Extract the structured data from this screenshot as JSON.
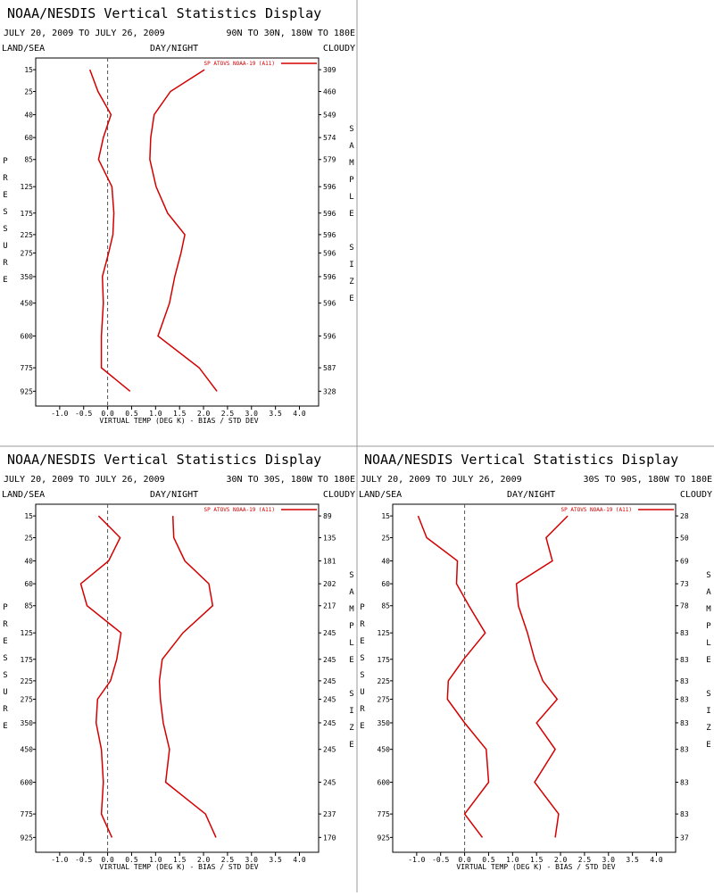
{
  "chart_data": [
    {
      "type": "line",
      "title": "NOAA/NESDIS Vertical Statistics Display",
      "date_range": "JULY 20, 2009 TO JULY 26, 2009",
      "region": "90N TO 30N, 180W TO 180E",
      "land_sea": "LAND/SEA",
      "day_night": "DAY/NIGHT",
      "cloudy": "CLOUDY",
      "ylabel": "PRESSURE",
      "y2label": "SAMPLE SIZE",
      "xlabel": "VIRTUAL TEMP (DEG K) - BIAS / STD DEV",
      "xlim": [
        -1.5,
        4.4
      ],
      "xticks": [
        {
          "value": -1.0,
          "label": "-1.0"
        },
        -0.5,
        {
          "value": 0.0,
          "label": "0.0"
        },
        0.5,
        {
          "value": 1.0,
          "label": "1.0"
        },
        1.5,
        {
          "value": 2.0,
          "label": "2.0"
        },
        2.5,
        {
          "value": 3.0,
          "label": "3.0"
        },
        3.5,
        {
          "value": 4.0,
          "label": "4.0"
        }
      ],
      "ylim": [
        11,
        1030
      ],
      "y": [
        15,
        25,
        40,
        60,
        85,
        125,
        175,
        225,
        275,
        350,
        450,
        600,
        775,
        925
      ],
      "yticks": [
        15,
        25,
        40,
        60,
        85,
        125,
        175,
        225,
        275,
        350,
        450,
        600,
        775,
        925
      ],
      "series": [
        {
          "name": "SP ATOVS NOAA-19 (A11)",
          "color": "#d40000",
          "values": [
            -0.37,
            -0.2,
            0.07,
            -0.09,
            -0.19,
            0.09,
            0.13,
            0.11,
            0.02,
            -0.11,
            -0.09,
            -0.13,
            -0.13,
            0.47
          ],
          "std_dev": [
            2.02,
            1.31,
            0.97,
            0.9,
            0.88,
            1.01,
            1.25,
            1.61,
            1.53,
            1.4,
            1.29,
            1.05,
            1.91,
            2.28
          ]
        }
      ],
      "sample_size": [
        309,
        460,
        549,
        574,
        579,
        596,
        596,
        596,
        596,
        596,
        596,
        596,
        587,
        328
      ]
    },
    {
      "type": "line",
      "title": "NOAA/NESDIS Vertical Statistics Display",
      "date_range": "JULY 20, 2009 TO JULY 26, 2009",
      "region": "30N TO 30S, 180W TO 180E",
      "land_sea": "LAND/SEA",
      "day_night": "DAY/NIGHT",
      "cloudy": "CLOUDY",
      "ylabel": "PRESSURE",
      "y2label": "SAMPLE SIZE",
      "xlabel": "VIRTUAL TEMP (DEG K) - BIAS / STD DEV",
      "xlim": [
        -1.5,
        4.4
      ],
      "xticks": [
        {
          "value": -1.0,
          "label": "-1.0"
        },
        -0.5,
        {
          "value": 0.0,
          "label": "0.0"
        },
        0.5,
        {
          "value": 1.0,
          "label": "1.0"
        },
        1.5,
        {
          "value": 2.0,
          "label": "2.0"
        },
        2.5,
        {
          "value": 3.0,
          "label": "3.0"
        },
        3.5,
        {
          "value": 4.0,
          "label": "4.0"
        }
      ],
      "ylim": [
        11,
        1030
      ],
      "y": [
        15,
        25,
        40,
        60,
        85,
        125,
        175,
        225,
        275,
        350,
        450,
        600,
        775,
        925
      ],
      "yticks": [
        15,
        25,
        40,
        60,
        85,
        125,
        175,
        225,
        275,
        350,
        450,
        600,
        775,
        925
      ],
      "series": [
        {
          "name": "SP ATOVS NOAA-19 (A11)",
          "color": "#d40000",
          "values": [
            -0.19,
            0.26,
            0.02,
            -0.56,
            -0.43,
            0.28,
            0.19,
            0.06,
            -0.21,
            -0.24,
            -0.13,
            -0.09,
            -0.13,
            0.09
          ],
          "std_dev": [
            1.36,
            1.38,
            1.61,
            2.11,
            2.19,
            1.57,
            1.14,
            1.08,
            1.1,
            1.16,
            1.29,
            1.21,
            2.04,
            2.26
          ]
        }
      ],
      "sample_size": [
        89,
        135,
        181,
        202,
        217,
        245,
        245,
        245,
        245,
        245,
        245,
        245,
        237,
        170
      ]
    },
    {
      "type": "line",
      "title": "NOAA/NESDIS Vertical Statistics Display",
      "date_range": "JULY 20, 2009 TO JULY 26, 2009",
      "region": "30S TO 90S, 180W TO 180E",
      "land_sea": "LAND/SEA",
      "day_night": "DAY/NIGHT",
      "cloudy": "CLOUDY",
      "ylabel": "PRESSURE",
      "y2label": "SAMPLE SIZE",
      "xlabel": "VIRTUAL TEMP (DEG K) - BIAS / STD DEV",
      "xlim": [
        -1.5,
        4.4
      ],
      "xticks": [
        {
          "value": -1.0,
          "label": "-1.0"
        },
        -0.5,
        {
          "value": 0.0,
          "label": "0.0"
        },
        0.5,
        {
          "value": 1.0,
          "label": "1.0"
        },
        1.5,
        {
          "value": 2.0,
          "label": "2.0"
        },
        2.5,
        {
          "value": 3.0,
          "label": "3.0"
        },
        3.5,
        {
          "value": 4.0,
          "label": "4.0"
        }
      ],
      "ylim": [
        11,
        1030
      ],
      "y": [
        15,
        25,
        40,
        60,
        85,
        125,
        175,
        225,
        275,
        350,
        450,
        600,
        775,
        925
      ],
      "yticks": [
        15,
        25,
        40,
        60,
        85,
        125,
        175,
        225,
        275,
        350,
        450,
        600,
        775,
        925
      ],
      "series": [
        {
          "name": "SP ATOVS NOAA-19 (A11)",
          "color": "#d40000",
          "values": [
            -0.97,
            -0.79,
            -0.15,
            -0.17,
            0.09,
            0.43,
            -0.02,
            -0.34,
            -0.36,
            0.0,
            0.45,
            0.5,
            0.0,
            0.37
          ],
          "std_dev": [
            2.15,
            1.7,
            1.83,
            1.08,
            1.12,
            1.31,
            1.46,
            1.63,
            1.93,
            1.5,
            1.89,
            1.46,
            1.96,
            1.89
          ]
        }
      ],
      "sample_size": [
        28,
        50,
        69,
        73,
        78,
        83,
        83,
        83,
        83,
        83,
        83,
        83,
        83,
        37
      ]
    }
  ]
}
